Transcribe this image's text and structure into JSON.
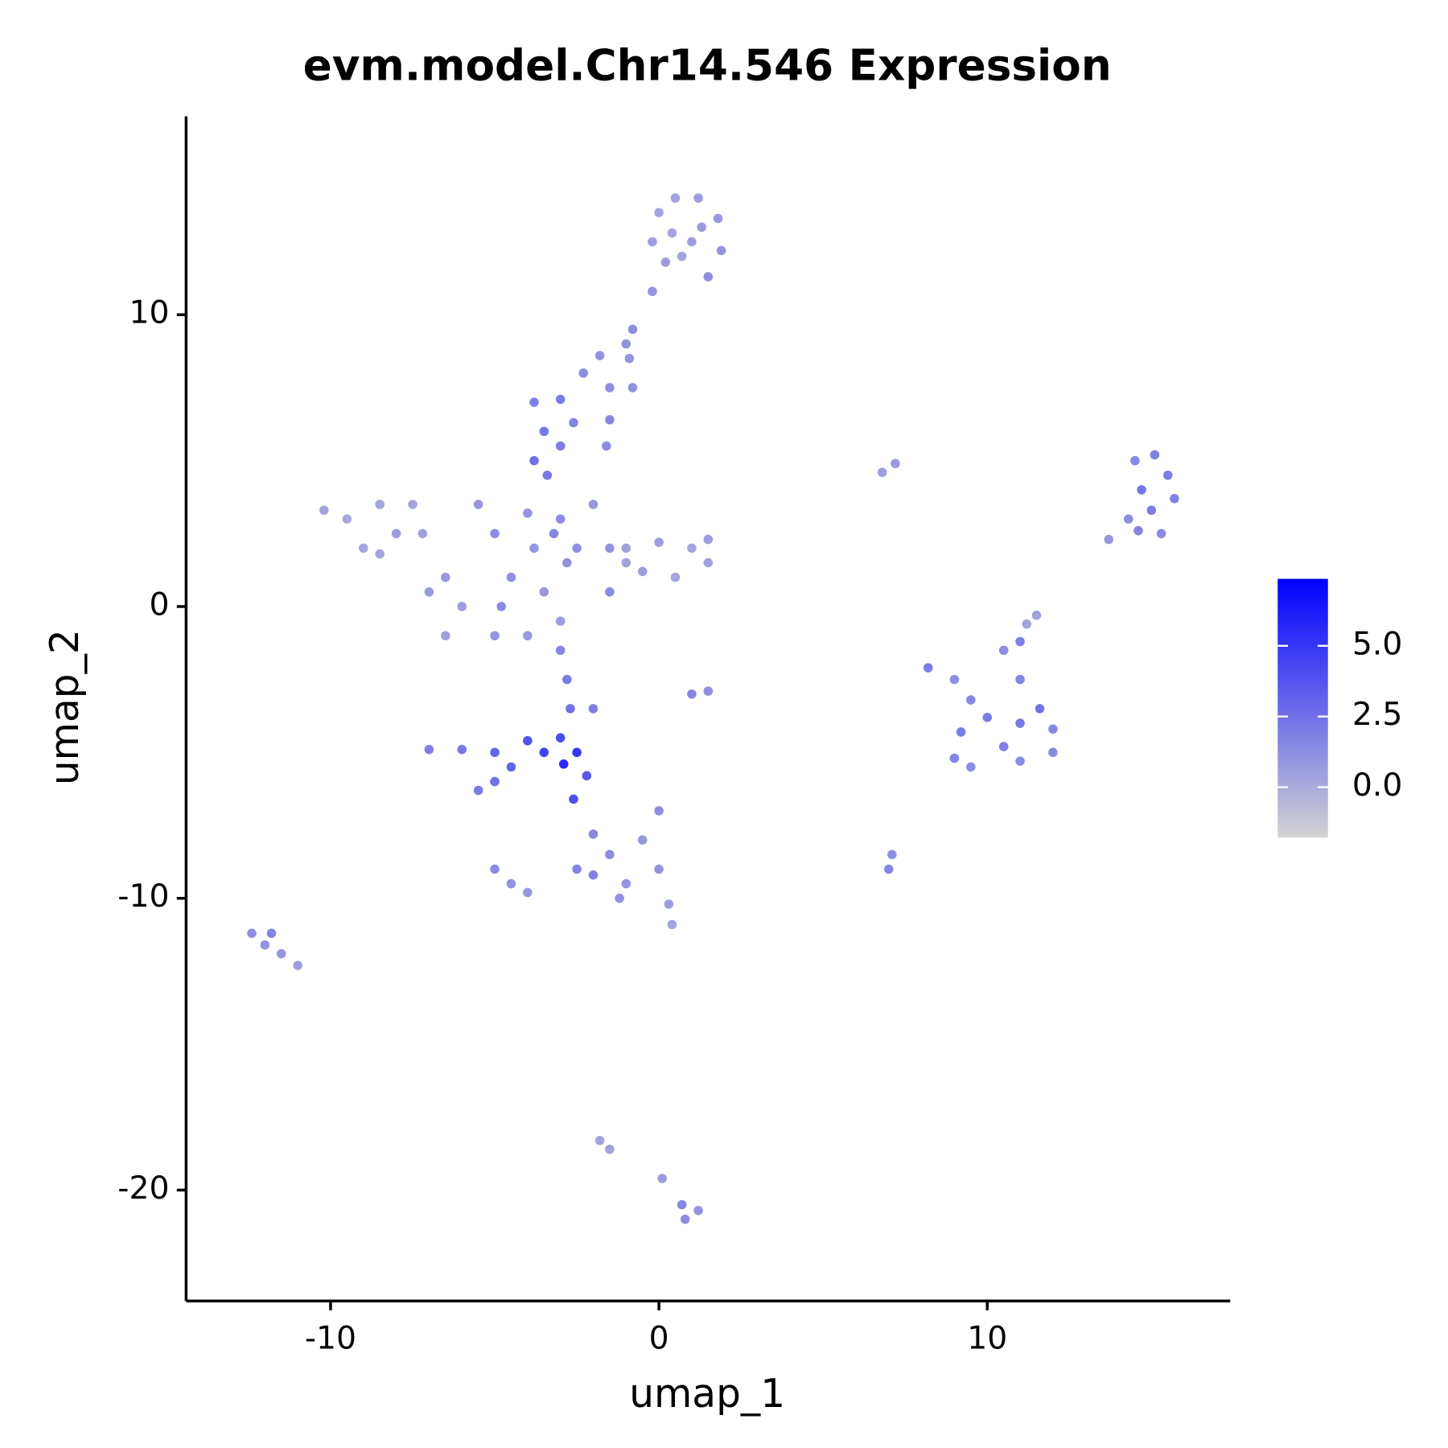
{
  "chart_data": {
    "type": "scatter",
    "title": "evm.model.Chr14.546 Expression",
    "x_label": "umap_1",
    "y_label": "umap_2",
    "xlim": [
      -14.4,
      17.4
    ],
    "ylim": [
      -23.8,
      16.8
    ],
    "xticks": [
      -10,
      0,
      10
    ],
    "yticks": [
      -20,
      -10,
      0,
      10
    ],
    "colorlim": [
      -1.78,
      7.37
    ],
    "colorticks": [
      {
        "value": 0,
        "label": "0.0"
      },
      {
        "value": 2.5,
        "label": "2.5"
      },
      {
        "value": 5,
        "label": "5.0"
      }
    ],
    "low_color": "#d3d3d3",
    "high_color": "#0000ff",
    "x": [
      0,
      0.5,
      1.2,
      1.8,
      1.9,
      1.5,
      0.7,
      -0.2,
      0.4,
      1,
      1.3,
      0.2,
      -0.2,
      -0.8,
      -1,
      -1.8,
      -0.9,
      -0.8,
      -1.5,
      -2.3,
      -1.5,
      -3.8,
      -3,
      -3.5,
      -3,
      -3.8,
      -3.4,
      -2.6,
      -1.6,
      -10.2,
      -9.5,
      -8.5,
      -7.5,
      -7.2,
      -9,
      -8.5,
      -8,
      -6.5,
      -6,
      -7,
      -6.5,
      -5.5,
      -5,
      -4,
      -3.2,
      -4.5,
      -3.5,
      -5,
      -4,
      -3,
      -2.8,
      -3,
      -2.5,
      -4.8,
      -3.8,
      -2,
      -1.5,
      -1.5,
      -1,
      0,
      1,
      1.5,
      0.5,
      -0.5,
      -1,
      1.5,
      -3,
      -2.8,
      -2.7,
      -2,
      -3,
      -2.5,
      -3.5,
      -2.2,
      -2.9,
      -4,
      -5,
      -6,
      -7,
      -4.5,
      -5,
      -5.5,
      -2.6,
      -2,
      -1.5,
      -2.5,
      -1,
      0,
      -0.5,
      0,
      0.3,
      0.4,
      -2,
      -1.2,
      -12.4,
      -11.8,
      -11.5,
      -11,
      -12,
      -5,
      -4.5,
      -4,
      1,
      1.5,
      6.8,
      7.2,
      7,
      7.1,
      -1.8,
      -1.5,
      0.1,
      0.7,
      1.2,
      0.8,
      11.5,
      11.2,
      8.2,
      9,
      9.5,
      10.5,
      11,
      11,
      10,
      11,
      12,
      12,
      11,
      9.5,
      9,
      9.2,
      10.5,
      11.6,
      14.5,
      15.1,
      15.5,
      15.7,
      15.3,
      14.6,
      13.7,
      14.3,
      14.7,
      15
    ],
    "y": [
      13.5,
      14,
      14,
      13.3,
      12.2,
      11.3,
      12,
      12.5,
      12.8,
      12.5,
      13,
      11.8,
      10.8,
      9.5,
      9,
      8.6,
      8.5,
      7.5,
      7.5,
      8,
      6.4,
      7,
      7.1,
      6,
      5.5,
      5,
      4.5,
      6.3,
      5.5,
      3.3,
      3,
      3.5,
      3.5,
      2.5,
      2,
      1.8,
      2.5,
      1,
      0,
      0.5,
      -1,
      3.5,
      2.5,
      3.2,
      2.5,
      1,
      0.5,
      -1,
      -1,
      -0.5,
      1.5,
      3,
      2,
      0,
      2,
      3.5,
      2,
      0.5,
      2,
      2.2,
      2,
      1.5,
      1,
      1.2,
      1.5,
      2.3,
      -1.5,
      -2.5,
      -3.5,
      -3.5,
      -4.5,
      -5,
      -5,
      -5.8,
      -5.4,
      -4.6,
      -5,
      -4.9,
      -4.9,
      -5.5,
      -6,
      -6.3,
      -6.6,
      -7.8,
      -8.5,
      -9,
      -9.5,
      -7,
      -8,
      -9,
      -10.2,
      -10.9,
      -9.2,
      -10,
      -11.2,
      -11.2,
      -11.9,
      -12.3,
      -11.6,
      -9,
      -9.5,
      -9.8,
      -3,
      -2.9,
      4.6,
      4.9,
      -9,
      -8.5,
      -18.3,
      -18.6,
      -19.6,
      -20.5,
      -20.7,
      -21,
      -0.3,
      -0.6,
      -2.1,
      -2.5,
      -3.2,
      -1.5,
      -1.2,
      -2.5,
      -3.8,
      -4,
      -4.2,
      -5,
      -5.3,
      -5.5,
      -5.2,
      -4.3,
      -4.8,
      -3.5,
      5,
      5.2,
      4.5,
      3.7,
      2.5,
      2.6,
      2.3,
      3,
      4,
      3.3
    ],
    "color_values": [
      0.3,
      0.4,
      0.6,
      0.8,
      1,
      1.2,
      0.3,
      0.5,
      0.2,
      0.5,
      0.7,
      0.6,
      1,
      1.2,
      1,
      1,
      0.9,
      1.1,
      1.2,
      1.3,
      1.5,
      1.8,
      2,
      2.2,
      1.9,
      2.5,
      2.1,
      1.6,
      1.3,
      0.2,
      0.1,
      0.3,
      0.2,
      0.4,
      0.2,
      0.3,
      0.5,
      0.8,
      0.6,
      0.7,
      0.5,
      0.9,
      1.2,
      1,
      1.5,
      1.1,
      0.8,
      0.9,
      0.7,
      0.6,
      1,
      1.3,
      1.1,
      1.4,
      0.9,
      0.8,
      1,
      1.4,
      0.4,
      0.5,
      0.3,
      0.4,
      0.2,
      0.5,
      0.3,
      0.5,
      1.5,
      2,
      2.5,
      1.8,
      4,
      5,
      4.5,
      3.5,
      5.5,
      3.8,
      3,
      2.2,
      1.8,
      3,
      2.5,
      2,
      4,
      1.5,
      1.3,
      1.6,
      0.9,
      1.2,
      0.8,
      1,
      0.6,
      0.3,
      1.8,
      1.1,
      1.2,
      1.6,
      0.8,
      0.5,
      1,
      1.4,
      1,
      0.8,
      1.5,
      1.2,
      0.5,
      0.7,
      1.5,
      1.2,
      0.3,
      0.4,
      0.6,
      1.5,
      1,
      1.2,
      0.4,
      0.3,
      2,
      1.2,
      1.5,
      1.3,
      1.8,
      1.6,
      2,
      2.2,
      1.5,
      1.4,
      1.3,
      1.2,
      1.6,
      2.1,
      1.9,
      2.4,
      1.5,
      1.8,
      2,
      1.7,
      1.4,
      1.6,
      0.8,
      1.2,
      2.2,
      1.9
    ]
  }
}
